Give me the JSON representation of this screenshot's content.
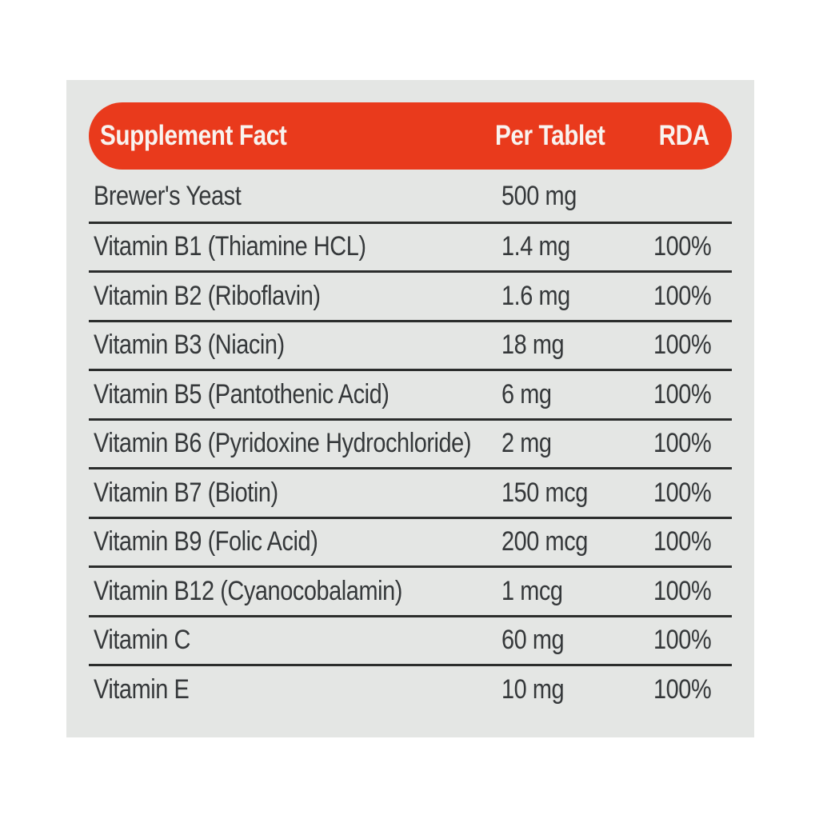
{
  "label": {
    "header": {
      "title": "Supplement Fact",
      "per_tablet": "Per Tablet",
      "rda": "RDA"
    },
    "rows": [
      {
        "name": "Brewer's Yeast",
        "amount": "500 mg",
        "rda": ""
      },
      {
        "name": "Vitamin B1 (Thiamine HCL)",
        "amount": "1.4 mg",
        "rda": "100%"
      },
      {
        "name": "Vitamin B2 (Riboflavin)",
        "amount": "1.6 mg",
        "rda": "100%"
      },
      {
        "name": "Vitamin B3 (Niacin)",
        "amount": "18 mg",
        "rda": "100%"
      },
      {
        "name": "Vitamin B5 (Pantothenic Acid)",
        "amount": "6 mg",
        "rda": "100%"
      },
      {
        "name": "Vitamin B6 (Pyridoxine Hydrochloride)",
        "amount": "2 mg",
        "rda": "100%"
      },
      {
        "name": "Vitamin B7 (Biotin)",
        "amount": "150 mcg",
        "rda": "100%"
      },
      {
        "name": "Vitamin B9 (Folic Acid)",
        "amount": "200 mcg",
        "rda": "100%"
      },
      {
        "name": "Vitamin B12 (Cyanocobalamin)",
        "amount": "1 mcg",
        "rda": "100%"
      },
      {
        "name": "Vitamin C",
        "amount": "60 mg",
        "rda": "100%"
      },
      {
        "name": "Vitamin E",
        "amount": "10 mg",
        "rda": "100%"
      }
    ],
    "colors": {
      "header_bg": "#e93a1c",
      "header_text": "#f8f3ef",
      "card_bg": "#e4e6e4",
      "text": "#35383a",
      "rule": "#2b2d2c",
      "page_bg": "#ffffff"
    }
  }
}
